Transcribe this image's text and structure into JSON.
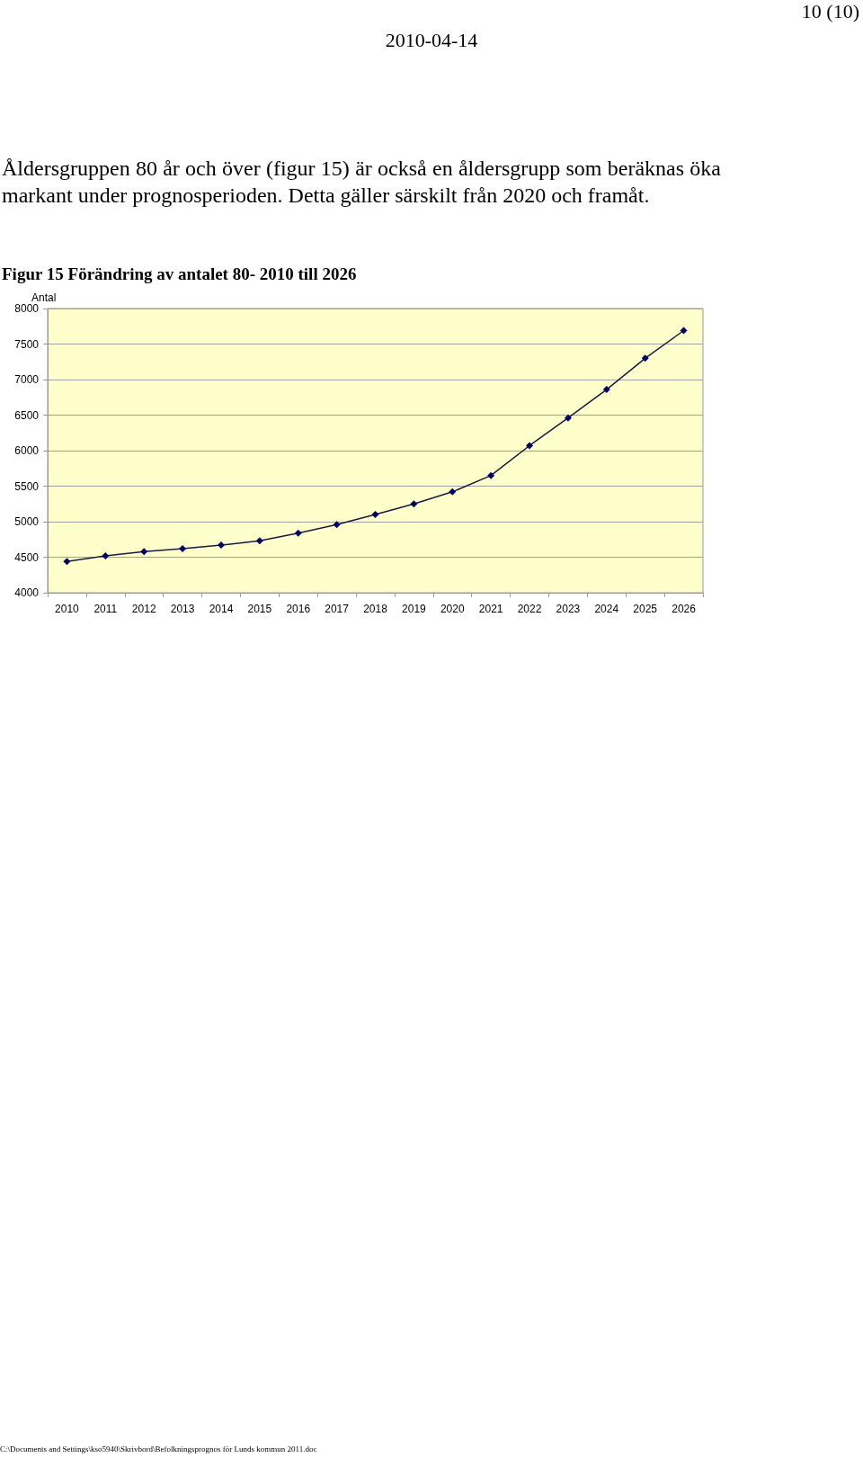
{
  "chart_data": {
    "type": "line",
    "title": "Figur 15 Förändring av antalet 80-  2010 till 2026",
    "ylabel": "Antal",
    "categories": [
      "2010",
      "2011",
      "2012",
      "2013",
      "2014",
      "2015",
      "2016",
      "2017",
      "2018",
      "2019",
      "2020",
      "2021",
      "2022",
      "2023",
      "2024",
      "2025",
      "2026"
    ],
    "series": [
      {
        "color": "#000066",
        "values": [
          4440,
          4520,
          4580,
          4620,
          4670,
          4730,
          4840,
          4960,
          5100,
          5250,
          5420,
          5650,
          6070,
          6460,
          6860,
          7300,
          7690
        ]
      }
    ],
    "ylim": [
      4000,
      8000
    ],
    "yticks": [
      4000,
      4500,
      5000,
      5500,
      6000,
      6500,
      7000,
      7500,
      8000
    ],
    "grid": "y",
    "marker": "diamond",
    "line_style": "solid",
    "annotations": [
      "10 (10)",
      "2010-04-14",
      "Åldersgruppen 80 år och över (figur 15) är också en åldersgrupp som beräknas öka markant under prognosperioden. Detta gäller särskilt från 2020 och framåt.",
      "C:\\Documents and Settings\\kso5940\\Skrivbord\\Befolkningsprognos för Lunds kommun 2011.doc"
    ]
  }
}
